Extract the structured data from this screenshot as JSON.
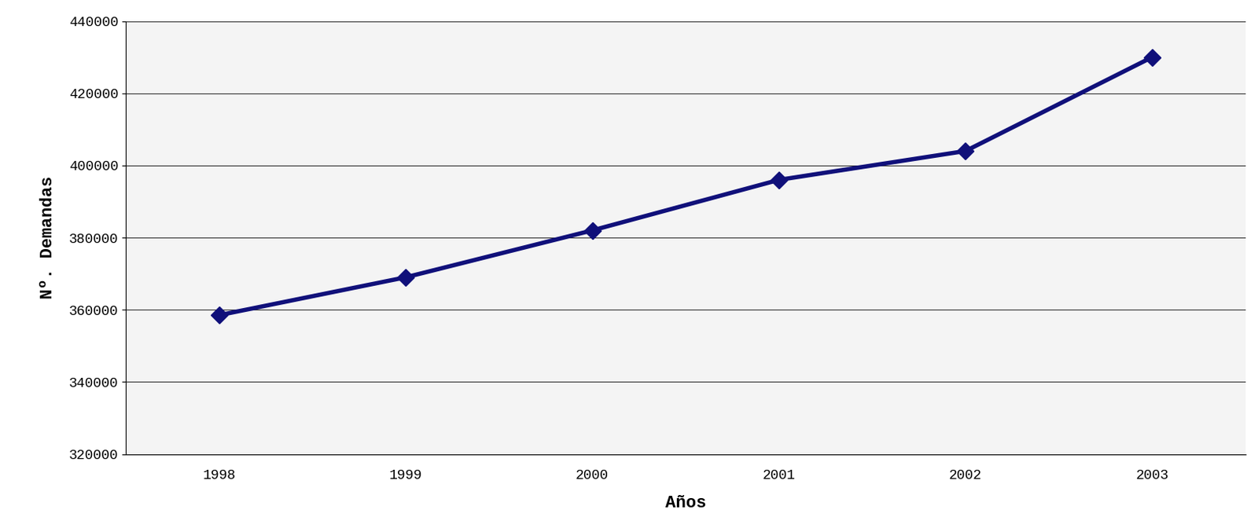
{
  "chart_data": {
    "type": "line",
    "x_label": "Años",
    "y_label": "Nº. Demandas",
    "categories": [
      "1998",
      "1999",
      "2000",
      "2001",
      "2002",
      "2003"
    ],
    "values": [
      358500,
      369000,
      382000,
      396000,
      404000,
      430000
    ],
    "color": "#10107a",
    "marker": "diamond",
    "ylim": [
      320000,
      440000
    ],
    "yticks": [
      320000,
      340000,
      360000,
      380000,
      400000,
      420000,
      440000
    ],
    "grid": true
  }
}
